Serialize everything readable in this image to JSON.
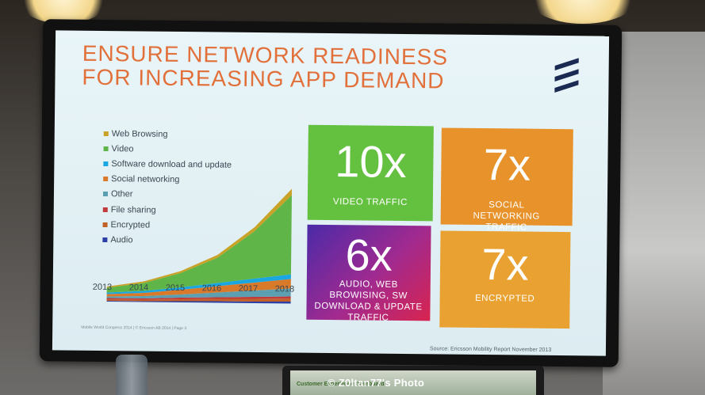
{
  "slide": {
    "title_line1": "ENSURE NETWORK READINESS",
    "title_line2": "FOR INCREASING APP DEMAND",
    "legend": [
      {
        "label": "Web Browsing",
        "color": "#c9a227"
      },
      {
        "label": "Video",
        "color": "#5fb547"
      },
      {
        "label": "Software download and update",
        "color": "#1aa6e0"
      },
      {
        "label": "Social networking",
        "color": "#d97a2b"
      },
      {
        "label": "Other",
        "color": "#5b9fb1"
      },
      {
        "label": "File sharing",
        "color": "#c23a3a"
      },
      {
        "label": "Encrypted",
        "color": "#c2602a"
      },
      {
        "label": "Audio",
        "color": "#2b3fa6"
      }
    ],
    "years": [
      "2013",
      "2014",
      "2015",
      "2016",
      "2017",
      "2018"
    ],
    "tiles": [
      {
        "big": "10x",
        "caption": "VIDEO TRAFFIC",
        "color": "#64c03f"
      },
      {
        "big": "7x",
        "caption": "SOCIAL NETWORKING TRAFFIC",
        "color": "#e8922c"
      },
      {
        "big": "6x",
        "caption": "AUDIO, WEB BROWISING, SW DOWNLOAD & UPDATE TRAFFIC",
        "color": "#8a2aa3"
      },
      {
        "big": "7x",
        "caption": "ENCRYPTED",
        "color": "#e9a231"
      }
    ],
    "footer_left": "Mobile World Congress 2014  |  © Ericsson AB 2014  |  Page 3",
    "source": "Source: Ericsson Mobility Report November 2013"
  },
  "laptop_text": "Customer Experience Dashboard",
  "watermark": "© Z0ltan77's Photo"
}
